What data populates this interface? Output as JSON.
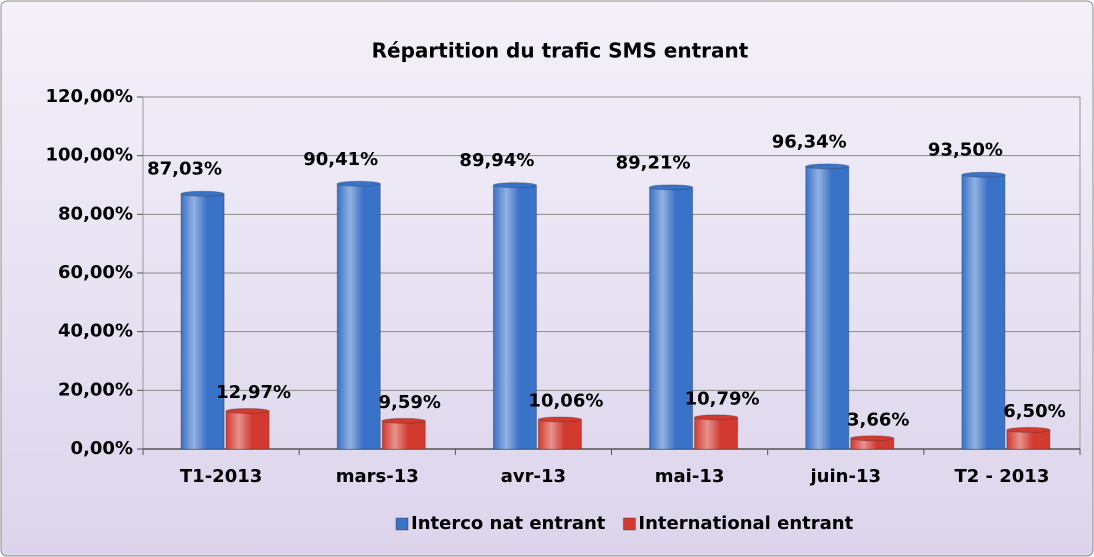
{
  "chart_data": {
    "type": "bar",
    "title": "Répartition du trafic SMS entrant",
    "categories": [
      "T1-2013",
      "mars-13",
      "avr-13",
      "mai-13",
      "juin-13",
      "T2 - 2013"
    ],
    "series": [
      {
        "name": "Interco nat entrant",
        "color": "#3a72c8",
        "values": [
          87.03,
          90.41,
          89.94,
          89.21,
          96.34,
          93.5
        ],
        "value_labels": [
          "87,03%",
          "90,41%",
          "89,94%",
          "89,21%",
          "96,34%",
          "93,50%"
        ]
      },
      {
        "name": "International entrant",
        "color": "#d23a30",
        "values": [
          12.97,
          9.59,
          10.06,
          10.79,
          3.66,
          6.5
        ],
        "value_labels": [
          "12,97%",
          "9,59%",
          "10,06%",
          "10,79%",
          "3,66%",
          "6,50%"
        ]
      }
    ],
    "ylim": [
      0,
      120
    ],
    "yticks": [
      {
        "value": 0,
        "label": "0,00%"
      },
      {
        "value": 20,
        "label": "20,00%"
      },
      {
        "value": 40,
        "label": "40,00%"
      },
      {
        "value": 60,
        "label": "60,00%"
      },
      {
        "value": 80,
        "label": "80,00%"
      },
      {
        "value": 100,
        "label": "100,00%"
      },
      {
        "value": 120,
        "label": "120,00%"
      }
    ],
    "grid": true,
    "legend": "bottom"
  }
}
